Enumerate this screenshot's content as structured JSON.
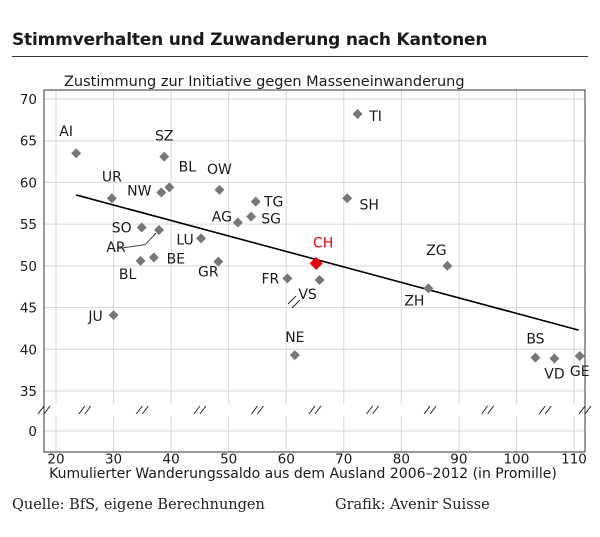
{
  "title": "Stimmverhalten und Zuwanderung nach Kantonen",
  "source": "Quelle: BfS, eigene Berechnungen",
  "credit": "Grafik: Avenir Suisse",
  "chart_data": {
    "type": "scatter",
    "ylabel": "Zustimmung zur Initiative gegen Masseneinwanderung",
    "xlabel": "Kumulierter Wanderungssaldo aus dem Ausland 2006–2012 (in Promille)",
    "x_ticks": [
      20,
      30,
      40,
      50,
      60,
      70,
      80,
      90,
      100,
      110
    ],
    "y_ticks": [
      35,
      40,
      45,
      50,
      55,
      60,
      65,
      70
    ],
    "y_zero_label": "0",
    "xlim": [
      20,
      113
    ],
    "ylim": [
      33,
      72
    ],
    "axis_breaks": true,
    "grid": true,
    "points": [
      {
        "label": "AI",
        "x": 23.5,
        "y": 63.5,
        "color": "#777777"
      },
      {
        "label": "SZ",
        "x": 38.8,
        "y": 63.1,
        "color": "#777777"
      },
      {
        "label": "UR",
        "x": 29.7,
        "y": 58.1,
        "color": "#777777"
      },
      {
        "label": "NW",
        "x": 38.3,
        "y": 58.8,
        "color": "#777777"
      },
      {
        "label": "BL",
        "x": 39.7,
        "y": 59.4,
        "color": "#777777"
      },
      {
        "label": "OW",
        "x": 48.4,
        "y": 59.1,
        "color": "#777777"
      },
      {
        "label": "SO",
        "x": 34.9,
        "y": 54.6,
        "color": "#777777"
      },
      {
        "label": "AR",
        "x": 37.9,
        "y": 54.3,
        "color": "#777777"
      },
      {
        "label": "BL",
        "x": 34.7,
        "y": 50.6,
        "color": "#777777"
      },
      {
        "label": "BE",
        "x": 37.0,
        "y": 51.0,
        "color": "#777777"
      },
      {
        "label": "LU",
        "x": 45.2,
        "y": 53.3,
        "color": "#777777"
      },
      {
        "label": "AG",
        "x": 51.6,
        "y": 55.2,
        "color": "#777777"
      },
      {
        "label": "SG",
        "x": 53.9,
        "y": 55.9,
        "color": "#777777"
      },
      {
        "label": "TG",
        "x": 54.7,
        "y": 57.7,
        "color": "#777777"
      },
      {
        "label": "GR",
        "x": 48.2,
        "y": 50.5,
        "color": "#777777"
      },
      {
        "label": "FR",
        "x": 60.2,
        "y": 48.5,
        "color": "#777777"
      },
      {
        "label": "VS",
        "x": 65.8,
        "y": 48.3,
        "color": "#777777"
      },
      {
        "label": "CH",
        "x": 65.2,
        "y": 50.3,
        "color": "#e8000b"
      },
      {
        "label": "TI",
        "x": 72.4,
        "y": 68.2,
        "color": "#777777"
      },
      {
        "label": "SH",
        "x": 70.6,
        "y": 58.1,
        "color": "#777777"
      },
      {
        "label": "NE",
        "x": 61.5,
        "y": 39.3,
        "color": "#777777"
      },
      {
        "label": "JU",
        "x": 30.0,
        "y": 44.1,
        "color": "#777777"
      },
      {
        "label": "ZG",
        "x": 88.0,
        "y": 50.0,
        "color": "#777777"
      },
      {
        "label": "ZH",
        "x": 84.7,
        "y": 47.3,
        "color": "#777777"
      },
      {
        "label": "BS",
        "x": 103.3,
        "y": 39.0,
        "color": "#777777"
      },
      {
        "label": "VD",
        "x": 106.6,
        "y": 38.9,
        "color": "#777777"
      },
      {
        "label": "GE",
        "x": 111.0,
        "y": 39.2,
        "color": "#777777"
      }
    ],
    "trendline": {
      "x": [
        23.5,
        110.8
      ],
      "y": [
        58.5,
        42.3
      ],
      "color": "#000000"
    }
  }
}
